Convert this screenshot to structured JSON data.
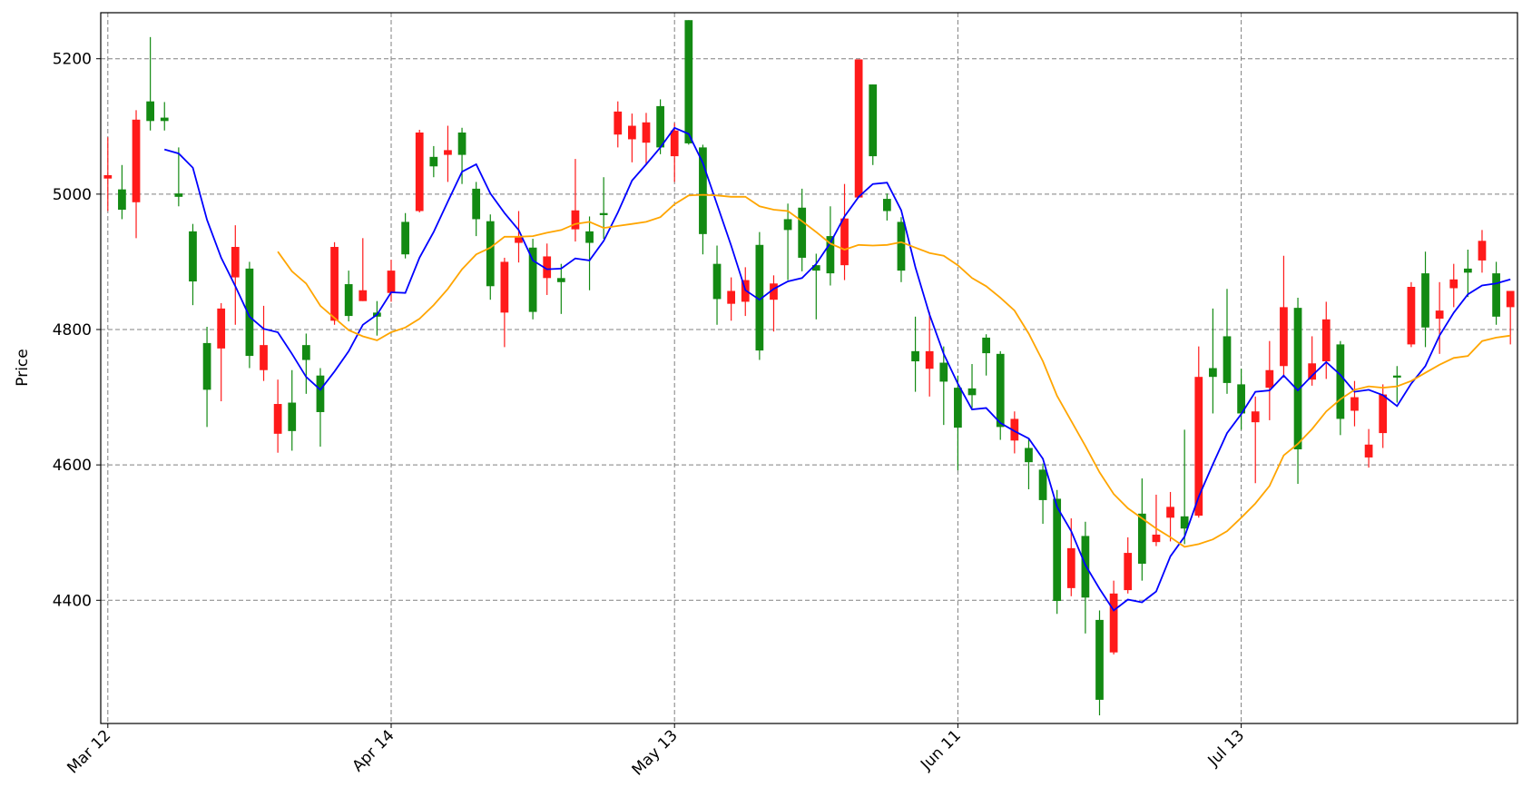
{
  "chart_data": {
    "type": "candlestick",
    "ylabel": "Price",
    "categories": [
      "Mar 12",
      null,
      null,
      null,
      null,
      null,
      null,
      null,
      null,
      null,
      null,
      null,
      null,
      null,
      null,
      null,
      null,
      null,
      null,
      null,
      "Apr 14",
      null,
      null,
      null,
      null,
      null,
      null,
      null,
      null,
      null,
      null,
      null,
      null,
      null,
      null,
      null,
      null,
      null,
      null,
      null,
      "May 13",
      null,
      null,
      null,
      null,
      null,
      null,
      null,
      null,
      null,
      null,
      null,
      null,
      null,
      null,
      null,
      null,
      null,
      null,
      null,
      "Jun 11",
      null,
      null,
      null,
      null,
      null,
      null,
      null,
      null,
      null,
      null,
      null,
      null,
      null,
      null,
      null,
      null,
      null,
      null,
      null,
      "Jul 13",
      null,
      null,
      null,
      null,
      null,
      null,
      null,
      null,
      null,
      null,
      null,
      null,
      null,
      null,
      null,
      null,
      null,
      null,
      null
    ],
    "open": [
      5023,
      5007,
      4988,
      5137,
      5113,
      5001,
      4945,
      4780,
      4772,
      4877,
      4890,
      4740,
      4646,
      4692,
      4777,
      4732,
      4813,
      4867,
      4842,
      4825,
      4854,
      4959,
      4975,
      5055,
      5058,
      5091,
      5008,
      4960,
      4825,
      4928,
      4921,
      4876,
      4876,
      4948,
      4945,
      4972,
      5088,
      5081,
      5076,
      5130,
      5056,
      5257,
      5069,
      4897,
      4838,
      4841,
      4925,
      4844,
      4963,
      4980,
      4895,
      4938,
      4895,
      4995,
      5162,
      4993,
      4959,
      4768,
      4742,
      4751,
      4714,
      4713,
      4788,
      4764,
      4636,
      4625,
      4593,
      4550,
      4418,
      4495,
      4371,
      4323,
      4415,
      4528,
      4486,
      4522,
      4524,
      4525,
      4743,
      4790,
      4719,
      4663,
      4714,
      4746,
      4832,
      4726,
      4753,
      4778,
      4680,
      4611,
      4647,
      4732,
      4778,
      4883,
      4816,
      4861,
      4890,
      4902,
      4883,
      4833
    ],
    "high": [
      5084,
      5043,
      5124,
      5232,
      5136,
      5069,
      4956,
      4804,
      4839,
      4954,
      4900,
      4835,
      4726,
      4740,
      4794,
      4743,
      4929,
      4887,
      4935,
      4842,
      4903,
      4972,
      5095,
      5071,
      5101,
      5098,
      5018,
      4970,
      4906,
      4975,
      4934,
      4927,
      4897,
      5052,
      4967,
      5025,
      5137,
      5119,
      5120,
      5140,
      5105,
      5257,
      5073,
      4924,
      4877,
      4892,
      4944,
      4880,
      4986,
      5008,
      4912,
      4982,
      5015,
      5199,
      5162,
      5001,
      4966,
      4819,
      4826,
      4775,
      4732,
      4749,
      4793,
      4768,
      4679,
      4639,
      4602,
      4563,
      4521,
      4516,
      4385,
      4429,
      4493,
      4580,
      4556,
      4560,
      4652,
      4775,
      4831,
      4860,
      4742,
      4701,
      4783,
      4909,
      4847,
      4790,
      4841,
      4783,
      4724,
      4653,
      4719,
      4746,
      4870,
      4915,
      4870,
      4897,
      4918,
      4947,
      4900,
      4857
    ],
    "low": [
      4975,
      4963,
      4935,
      5094,
      5094,
      4982,
      4836,
      4656,
      4694,
      4807,
      4743,
      4724,
      4618,
      4621,
      4705,
      4627,
      4807,
      4812,
      4842,
      4791,
      4841,
      4905,
      4973,
      5025,
      5018,
      5015,
      4938,
      4844,
      4774,
      4899,
      4815,
      4851,
      4823,
      4930,
      4858,
      4934,
      5069,
      5047,
      5043,
      5059,
      5018,
      5073,
      4911,
      4807,
      4813,
      4820,
      4755,
      4797,
      4873,
      4886,
      4815,
      4865,
      4873,
      4995,
      5043,
      4961,
      4870,
      4708,
      4701,
      4659,
      4592,
      4684,
      4732,
      4637,
      4617,
      4564,
      4513,
      4380,
      4406,
      4351,
      4230,
      4320,
      4410,
      4429,
      4480,
      4487,
      4483,
      4522,
      4676,
      4705,
      4652,
      4573,
      4666,
      4729,
      4572,
      4717,
      4727,
      4644,
      4657,
      4596,
      4625,
      4692,
      4774,
      4774,
      4764,
      4833,
      4848,
      4884,
      4807,
      4778
    ],
    "close": [
      5028,
      4977,
      5110,
      5108,
      5108,
      4996,
      4871,
      4711,
      4831,
      4922,
      4761,
      4777,
      4690,
      4650,
      4755,
      4678,
      4922,
      4820,
      4858,
      4819,
      4887,
      4911,
      5091,
      5041,
      5065,
      5058,
      4963,
      4864,
      4900,
      4938,
      4826,
      4908,
      4870,
      4976,
      4928,
      4969,
      5122,
      5101,
      5106,
      5069,
      5094,
      5075,
      4941,
      4845,
      4857,
      4873,
      4769,
      4868,
      4947,
      4906,
      4887,
      4883,
      4964,
      5199,
      5056,
      4975,
      4887,
      4753,
      4768,
      4723,
      4655,
      4703,
      4765,
      4656,
      4668,
      4604,
      4548,
      4399,
      4477,
      4404,
      4253,
      4410,
      4470,
      4454,
      4497,
      4538,
      4506,
      4730,
      4730,
      4721,
      4676,
      4679,
      4740,
      4833,
      4623,
      4750,
      4815,
      4668,
      4700,
      4630,
      4704,
      4729,
      4863,
      4803,
      4828,
      4874,
      4884,
      4931,
      4819,
      4857
    ],
    "up_color": "#ff1a1a",
    "down_color": "#138a13",
    "series": [
      {
        "color": "#0000ff",
        "values": [
          null,
          null,
          null,
          null,
          5066,
          5060,
          5039,
          4962,
          4906,
          4864,
          4819,
          4801,
          4796,
          4764,
          4730,
          4711,
          4738,
          4768,
          4807,
          4822,
          4855,
          4854,
          4906,
          4944,
          4989,
          5033,
          5044,
          5001,
          4972,
          4947,
          4902,
          4889,
          4890,
          4905,
          4902,
          4931,
          4973,
          5020,
          5044,
          5069,
          5098,
          5089,
          5046,
          4985,
          4924,
          4858,
          4844,
          4860,
          4871,
          4876,
          4897,
          4928,
          4967,
          4996,
          5015,
          5017,
          4976,
          4892,
          4822,
          4764,
          4720,
          4682,
          4684,
          4662,
          4650,
          4639,
          4609,
          4538,
          4502,
          4452,
          4417,
          4385,
          4401,
          4397,
          4413,
          4465,
          4494,
          4553,
          4601,
          4647,
          4675,
          4708,
          4710,
          4732,
          4710,
          4732,
          4752,
          4733,
          4708,
          4711,
          4703,
          4687,
          4720,
          4746,
          4791,
          4825,
          4852,
          4865,
          4868,
          4874
        ]
      },
      {
        "color": "#ffa500",
        "values": [
          null,
          null,
          null,
          null,
          null,
          null,
          null,
          null,
          null,
          null,
          null,
          null,
          4915,
          4886,
          4868,
          4835,
          4817,
          4799,
          4790,
          4784,
          4796,
          4803,
          4816,
          4836,
          4860,
          4889,
          4911,
          4921,
          4937,
          4937,
          4938,
          4943,
          4947,
          4956,
          4959,
          4950,
          4953,
          4956,
          4959,
          4966,
          4985,
          4998,
          4999,
          4998,
          4996,
          4996,
          4982,
          4977,
          4975,
          4960,
          4944,
          4927,
          4918,
          4925,
          4924,
          4925,
          4929,
          4921,
          4913,
          4909,
          4895,
          4876,
          4864,
          4847,
          4828,
          4794,
          4753,
          4702,
          4665,
          4628,
          4589,
          4557,
          4536,
          4521,
          4506,
          4493,
          4479,
          4483,
          4490,
          4502,
          4522,
          4543,
          4569,
          4614,
          4631,
          4653,
          4679,
          4697,
          4711,
          4716,
          4714,
          4716,
          4724,
          4736,
          4748,
          4758,
          4761,
          4783,
          4788,
          4791
        ]
      }
    ],
    "xlim": [
      -0.5,
      99.5
    ],
    "ylim": [
      4218,
      5268
    ],
    "yticks": [
      4400,
      4600,
      4800,
      5000,
      5200
    ],
    "grid": true
  }
}
